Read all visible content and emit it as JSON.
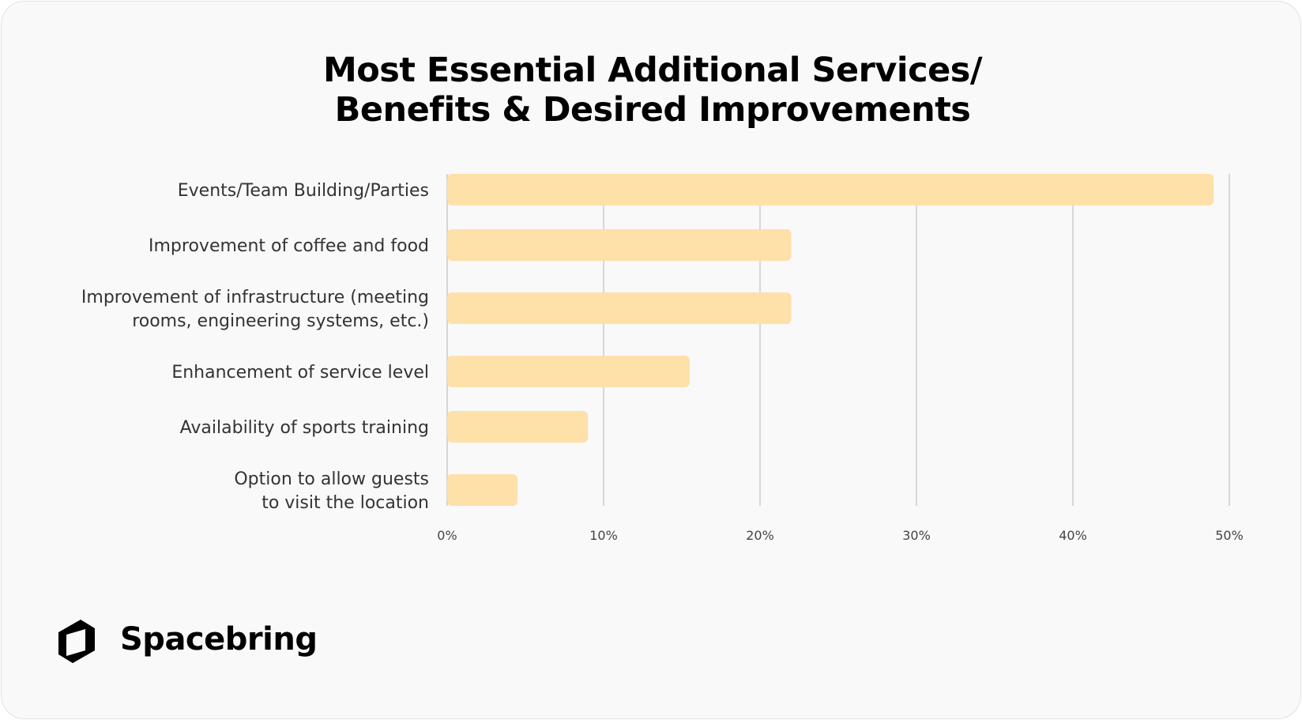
{
  "chart_data": {
    "type": "bar",
    "orientation": "horizontal",
    "title": [
      "Most Essential Additional Services/",
      "Benefits & Desired Improvements"
    ],
    "categories": [
      [
        "Events/Team Building/Parties"
      ],
      [
        "Improvement of coffee and food"
      ],
      [
        "Improvement of infrastructure (meeting",
        "rooms, engineering systems, etc.)"
      ],
      [
        "Enhancement of service level"
      ],
      [
        "Availability of sports training"
      ],
      [
        "Option to allow guests",
        "to visit the location"
      ]
    ],
    "values": [
      49,
      22,
      22,
      15.5,
      9,
      4.5
    ],
    "xlim": [
      0,
      50
    ],
    "ticks": [
      0,
      10,
      20,
      30,
      40,
      50
    ],
    "tick_labels": [
      "0%",
      "10%",
      "20%",
      "30%",
      "40%",
      "50%"
    ],
    "grid": "vertical",
    "bar_color": "#fee0a9",
    "grid_color": "#b5b5b5"
  },
  "brand": {
    "name": "Spacebring",
    "icon": "spacebring-logo-icon"
  }
}
